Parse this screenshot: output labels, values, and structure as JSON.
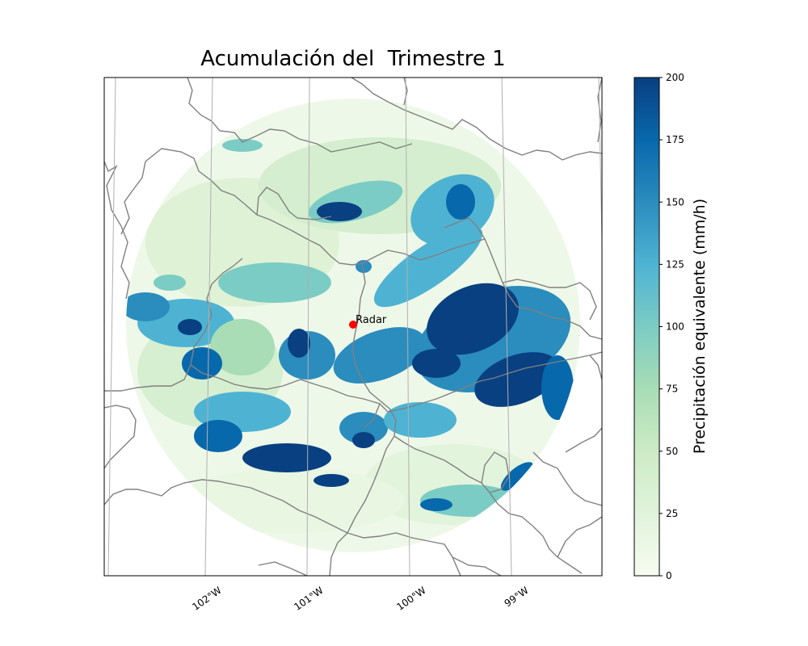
{
  "title": "Acumulación del  Trimestre 1",
  "radar": {
    "label": "Radar",
    "marker_color": "#ff0000"
  },
  "colorbar": {
    "label": "Precipitación equivalente (mm/h)",
    "min": 0,
    "max": 200,
    "ticks": [
      "0",
      "25",
      "50",
      "75",
      "100",
      "125",
      "150",
      "175",
      "200"
    ],
    "colormap": [
      "#f7fcf0",
      "#e0f3db",
      "#ccebc5",
      "#a8ddb5",
      "#7bccc4",
      "#4eb3d3",
      "#2b8cbe",
      "#0868ac",
      "#084081"
    ]
  },
  "longitude_ticks": [
    "102°W",
    "101°W",
    "100°W",
    "99°W"
  ],
  "colors": {
    "border": "#808080",
    "gridline": "#b0b0b0"
  }
}
